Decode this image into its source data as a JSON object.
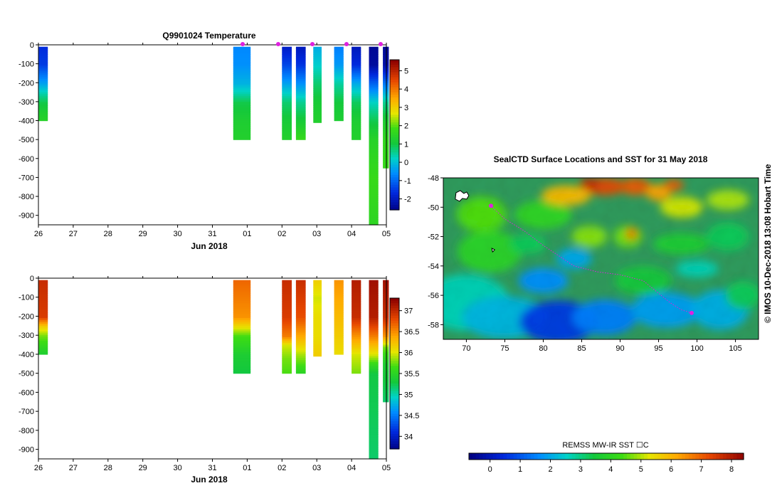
{
  "chart_data": [
    {
      "type": "heatmap",
      "title": "Q9901024  Temperature",
      "xlabel": "Jun 2018",
      "x_ticks": [
        "26",
        "27",
        "28",
        "29",
        "30",
        "31",
        "01",
        "02",
        "03",
        "04",
        "05"
      ],
      "y_ticks": [
        0,
        -100,
        -200,
        -300,
        -400,
        -500,
        -600,
        -700,
        -800,
        -900
      ],
      "ylim": [
        -950,
        0
      ],
      "colorbar": {
        "ticks": [
          5,
          4,
          3,
          2,
          1,
          0,
          -1,
          -2
        ],
        "range": [
          -2.6,
          5.6
        ],
        "scale": "rainbow"
      },
      "profiles": [
        {
          "date": "26",
          "depth_max": -400,
          "levels": [
            [
              0,
              -1.6
            ],
            [
              -100,
              -1.4
            ],
            [
              -200,
              -0.3
            ],
            [
              -250,
              0.4
            ],
            [
              -300,
              1.0
            ],
            [
              -350,
              1.3
            ],
            [
              -400,
              1.5
            ]
          ]
        },
        {
          "date": "31.6",
          "depth_max": -500,
          "levels": [
            [
              0,
              -0.6
            ],
            [
              -100,
              -0.5
            ],
            [
              -200,
              -0.1
            ],
            [
              -250,
              0.4
            ],
            [
              -300,
              1.0
            ],
            [
              -400,
              1.3
            ],
            [
              -500,
              1.4
            ]
          ]
        },
        {
          "date": "02.0",
          "depth_max": -500,
          "levels": [
            [
              0,
              -1.9
            ],
            [
              -100,
              -1.3
            ],
            [
              -200,
              -0.3
            ],
            [
              -300,
              0.8
            ],
            [
              -400,
              1.2
            ],
            [
              -500,
              1.4
            ]
          ]
        },
        {
          "date": "02.4",
          "depth_max": -500,
          "levels": [
            [
              0,
              -2.0
            ],
            [
              -100,
              -1.5
            ],
            [
              -200,
              -0.5
            ],
            [
              -300,
              0.6
            ],
            [
              -400,
              1.2
            ],
            [
              -500,
              1.8
            ]
          ]
        },
        {
          "date": "02.9",
          "depth_max": -410,
          "levels": [
            [
              0,
              -0.2
            ],
            [
              -100,
              0.2
            ],
            [
              -200,
              0.8
            ],
            [
              -300,
              1.2
            ],
            [
              -410,
              1.4
            ]
          ]
        },
        {
          "date": "03.5",
          "depth_max": -400,
          "levels": [
            [
              0,
              -0.7
            ],
            [
              -100,
              -0.4
            ],
            [
              -200,
              0.5
            ],
            [
              -300,
              1.1
            ],
            [
              -400,
              1.3
            ]
          ]
        },
        {
          "date": "04.0",
          "depth_max": -500,
          "levels": [
            [
              0,
              -2.0
            ],
            [
              -100,
              -1.6
            ],
            [
              -200,
              -0.2
            ],
            [
              -300,
              0.9
            ],
            [
              -400,
              1.3
            ],
            [
              -500,
              1.4
            ]
          ]
        },
        {
          "date": "04.5",
          "depth_max": -950,
          "levels": [
            [
              0,
              -2.4
            ],
            [
              -100,
              -2.3
            ],
            [
              -200,
              -1.0
            ],
            [
              -300,
              0.3
            ],
            [
              -400,
              1.0
            ],
            [
              -500,
              1.5
            ],
            [
              -700,
              1.8
            ],
            [
              -950,
              1.6
            ]
          ]
        },
        {
          "date": "04.9",
          "depth_max": -650,
          "levels": [
            [
              0,
              -2.4
            ],
            [
              -100,
              -2.2
            ],
            [
              -200,
              -0.8
            ],
            [
              -300,
              0.6
            ],
            [
              -400,
              1.3
            ],
            [
              -500,
              1.7
            ],
            [
              -650,
              1.8
            ]
          ]
        }
      ]
    },
    {
      "type": "heatmap",
      "title": "",
      "xlabel": "Jun 2018",
      "x_ticks": [
        "26",
        "27",
        "28",
        "29",
        "30",
        "31",
        "01",
        "02",
        "03",
        "04",
        "05"
      ],
      "y_ticks": [
        0,
        -100,
        -200,
        -300,
        -400,
        -500,
        -600,
        -700,
        -800,
        -900
      ],
      "ylim": [
        -950,
        0
      ],
      "colorbar": {
        "ticks": [
          "37",
          "36.5",
          "36",
          "35.5",
          "35",
          "34.5",
          "34"
        ],
        "range": [
          33.7,
          37.3
        ],
        "scale": "rainbow"
      },
      "profiles": [
        {
          "date": "26",
          "depth_max": -400,
          "levels": [
            [
              0,
              37.0
            ],
            [
              -200,
              36.9
            ],
            [
              -250,
              36.2
            ],
            [
              -300,
              35.8
            ],
            [
              -400,
              35.4
            ]
          ]
        },
        {
          "date": "31.6",
          "depth_max": -500,
          "levels": [
            [
              0,
              36.7
            ],
            [
              -100,
              36.6
            ],
            [
              -200,
              36.5
            ],
            [
              -250,
              36.1
            ],
            [
              -300,
              35.7
            ],
            [
              -400,
              35.4
            ],
            [
              -500,
              35.3
            ]
          ]
        },
        {
          "date": "02.0",
          "depth_max": -500,
          "levels": [
            [
              0,
              37.0
            ],
            [
              -200,
              36.9
            ],
            [
              -300,
              36.6
            ],
            [
              -350,
              36.0
            ],
            [
              -420,
              35.8
            ],
            [
              -500,
              35.7
            ]
          ]
        },
        {
          "date": "02.4",
          "depth_max": -500,
          "levels": [
            [
              0,
              37.0
            ],
            [
              -200,
              36.8
            ],
            [
              -300,
              36.4
            ],
            [
              -400,
              35.9
            ],
            [
              -500,
              35.5
            ]
          ]
        },
        {
          "date": "02.9",
          "depth_max": -410,
          "levels": [
            [
              0,
              36.2
            ],
            [
              -100,
              36.0
            ],
            [
              -200,
              36.1
            ],
            [
              -300,
              36.1
            ],
            [
              -410,
              36.2
            ]
          ]
        },
        {
          "date": "03.5",
          "depth_max": -400,
          "levels": [
            [
              0,
              36.5
            ],
            [
              -100,
              36.4
            ],
            [
              -200,
              36.3
            ],
            [
              -300,
              36.2
            ],
            [
              -400,
              36.1
            ]
          ]
        },
        {
          "date": "04.0",
          "depth_max": -500,
          "levels": [
            [
              0,
              37.1
            ],
            [
              -200,
              37.0
            ],
            [
              -300,
              36.5
            ],
            [
              -400,
              36.0
            ],
            [
              -500,
              35.8
            ]
          ]
        },
        {
          "date": "04.5",
          "depth_max": -950,
          "levels": [
            [
              0,
              37.2
            ],
            [
              -200,
              37.1
            ],
            [
              -300,
              36.6
            ],
            [
              -400,
              36.0
            ],
            [
              -450,
              35.6
            ],
            [
              -500,
              35.3
            ],
            [
              -950,
              35.2
            ]
          ]
        },
        {
          "date": "04.9",
          "depth_max": -650,
          "levels": [
            [
              0,
              37.2
            ],
            [
              -200,
              37.0
            ],
            [
              -300,
              36.5
            ],
            [
              -360,
              35.8
            ],
            [
              -450,
              35.4
            ],
            [
              -650,
              35.2
            ]
          ]
        }
      ]
    },
    {
      "type": "heatmap",
      "title": "SealCTD Surface Locations and SST for 31 May 2018",
      "x_ticks": [
        "70",
        "75",
        "80",
        "85",
        "90",
        "95",
        "100",
        "105"
      ],
      "y_ticks": [
        "-48",
        "-50",
        "-52",
        "-54",
        "-56",
        "-58"
      ],
      "xlim": [
        67,
        108
      ],
      "ylim": [
        -59,
        -48
      ],
      "track": [
        [
          73.2,
          -49.9
        ],
        [
          75.0,
          -50.8
        ],
        [
          77.5,
          -51.6
        ],
        [
          80.0,
          -52.6
        ],
        [
          82.0,
          -53.3
        ],
        [
          84.0,
          -54.0
        ],
        [
          87.0,
          -54.4
        ],
        [
          90.0,
          -54.6
        ],
        [
          93.0,
          -55.0
        ],
        [
          96.5,
          -56.5
        ],
        [
          98.0,
          -57.0
        ],
        [
          99.3,
          -57.2
        ]
      ],
      "colorbar": {
        "label": "REMSS MW-IR SST ☐C",
        "ticks": [
          "0",
          "1",
          "2",
          "3",
          "4",
          "5",
          "6",
          "7",
          "8"
        ],
        "range": [
          -0.7,
          8.4
        ],
        "scale": "rainbow"
      }
    }
  ],
  "credit": "© IMOS 10-Dec-2018 13:08 Hobart Time",
  "colors": {
    "marker": "#e020e0",
    "land": "#ffffff"
  }
}
